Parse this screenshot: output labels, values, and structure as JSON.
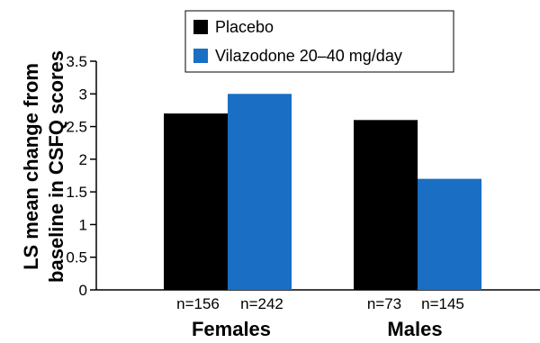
{
  "chart_data": {
    "type": "bar",
    "categories": [
      "Females",
      "Males"
    ],
    "n_labels": [
      [
        "n=156",
        "n=242"
      ],
      [
        "n=73",
        "n=145"
      ]
    ],
    "series": [
      {
        "name": "Placebo",
        "color": "#000000",
        "values": [
          2.7,
          2.6
        ]
      },
      {
        "name": "Vilazodone 20–40 mg/day",
        "color": "#1a6fc4",
        "values": [
          3.0,
          1.7
        ]
      }
    ],
    "ylabel_line1": "LS mean change from",
    "ylabel_line2": "baseline in CSFQ scores",
    "ylim": [
      0,
      3.5
    ],
    "yticks": [
      "0",
      "0.5",
      "1",
      "1.5",
      "2",
      "2.5",
      "3",
      "3.5"
    ],
    "grid": false,
    "legend_position": "top-center"
  }
}
